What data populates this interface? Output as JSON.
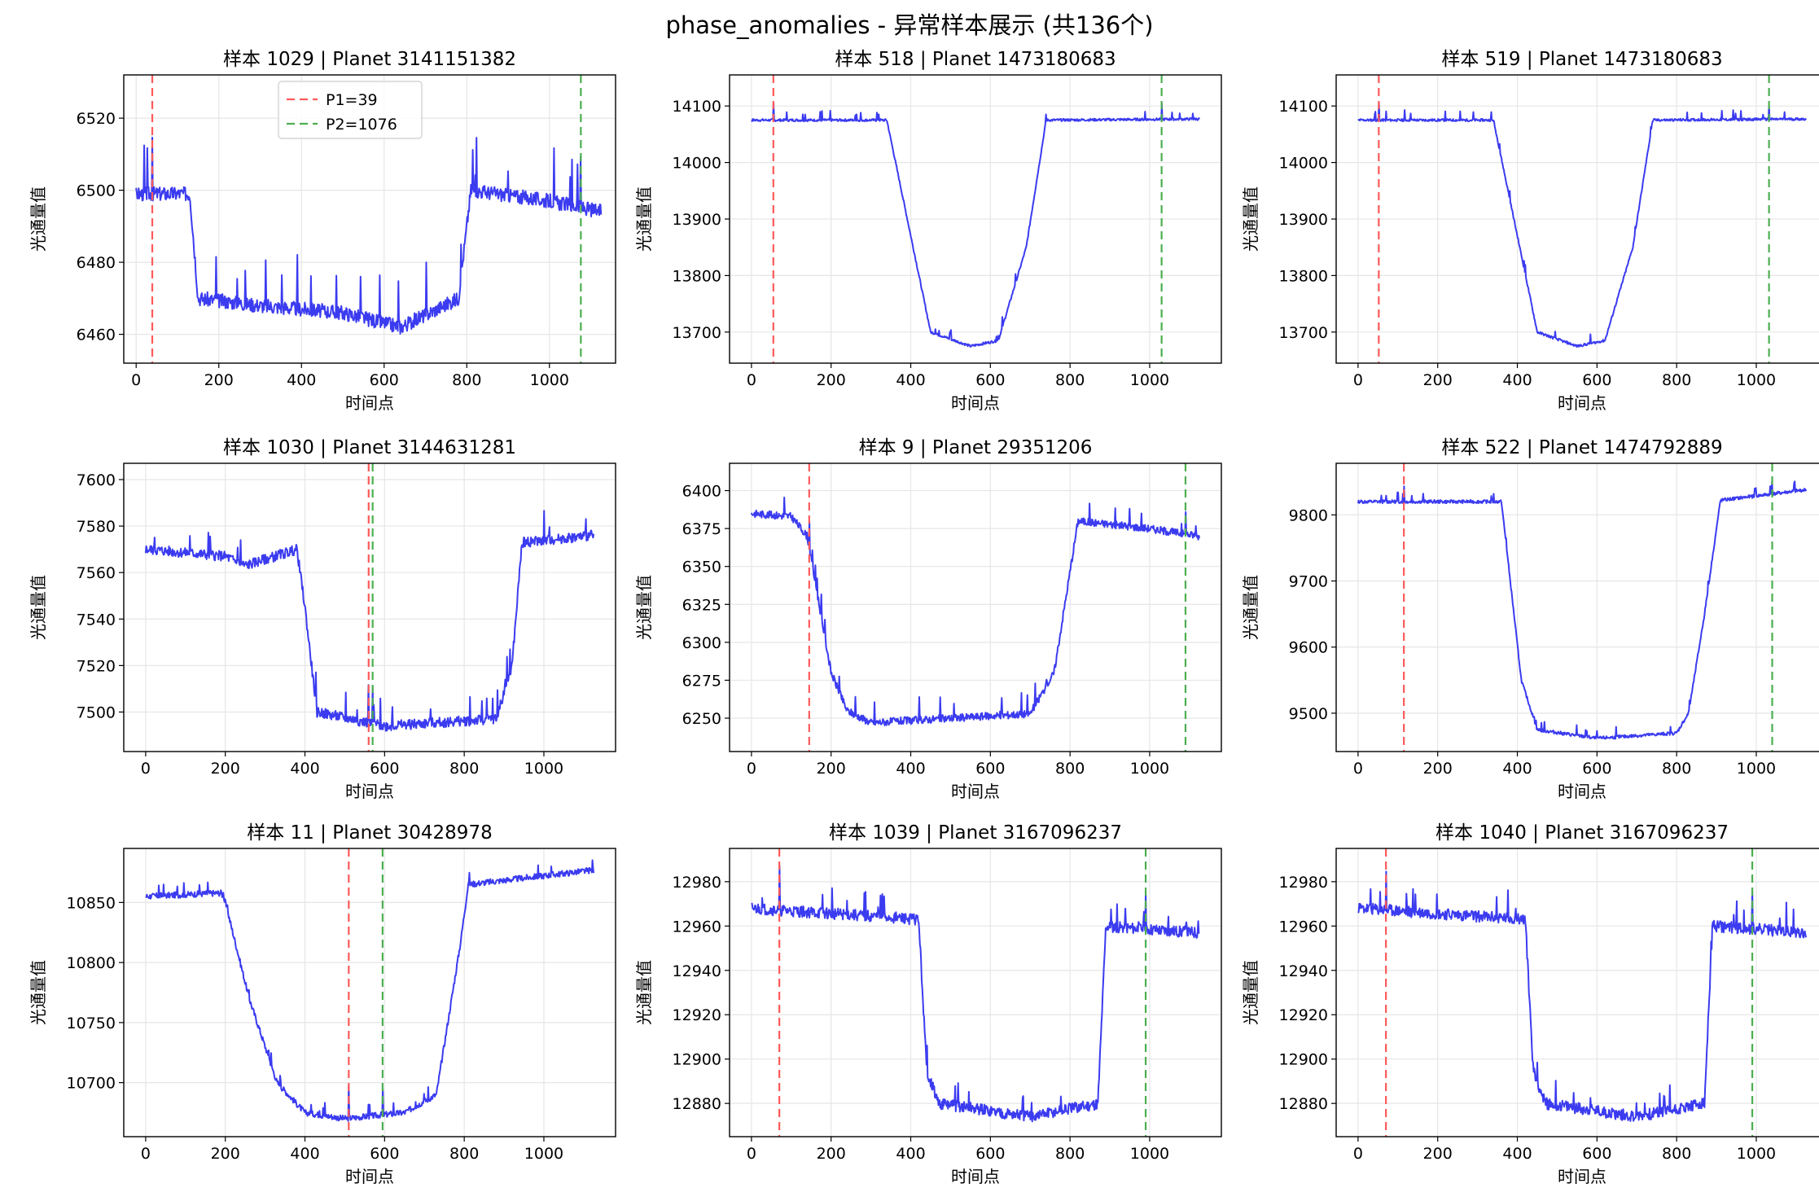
{
  "figure": {
    "title": "phase_anomalies - 异常样本展示 (共136个)",
    "xlabel": "时间点",
    "ylabel": "光通量值"
  },
  "colors": {
    "signal": "#3b3bf0",
    "p1": "#ff5a5a",
    "p2": "#4caf50",
    "grid": "#e6e6e6"
  },
  "chart_data": [
    {
      "type": "line",
      "title": "样本 1029 | Planet 3141151382",
      "xlim": [
        -30,
        1160
      ],
      "ylim": [
        6452,
        6532
      ],
      "yticks": [
        6460,
        6480,
        6500,
        6520
      ],
      "p1": 39,
      "p2": 1076,
      "legend": [
        "P1=39",
        "P2=1076"
      ],
      "profile": [
        [
          0,
          6499
        ],
        [
          130,
          6499
        ],
        [
          150,
          6470
        ],
        [
          300,
          6468
        ],
        [
          500,
          6466
        ],
        [
          640,
          6462
        ],
        [
          780,
          6470
        ],
        [
          810,
          6500
        ],
        [
          1000,
          6497
        ],
        [
          1125,
          6494
        ]
      ],
      "noise": 2.0,
      "spike_heights": [
        12,
        16,
        8
      ],
      "seed": 3
    },
    {
      "type": "line",
      "title": "样本 518 | Planet 1473180683",
      "xlim": [
        -55,
        1180
      ],
      "ylim": [
        13645,
        14155
      ],
      "yticks": [
        13700,
        13800,
        13900,
        14000,
        14100
      ],
      "p1": 55,
      "p2": 1030,
      "profile": [
        [
          0,
          14075
        ],
        [
          340,
          14075
        ],
        [
          450,
          13700
        ],
        [
          550,
          13675
        ],
        [
          620,
          13685
        ],
        [
          690,
          13850
        ],
        [
          740,
          14075
        ],
        [
          1125,
          14077
        ]
      ],
      "noise": 2.2,
      "spike_heights": [
        15,
        30,
        10
      ],
      "seed": 7
    },
    {
      "type": "line",
      "title": "样本 519 | Planet 1473180683",
      "xlim": [
        -55,
        1180
      ],
      "ylim": [
        13645,
        14155
      ],
      "yticks": [
        13700,
        13800,
        13900,
        14000,
        14100
      ],
      "p1": 52,
      "p2": 1032,
      "profile": [
        [
          0,
          14075
        ],
        [
          340,
          14075
        ],
        [
          450,
          13700
        ],
        [
          550,
          13675
        ],
        [
          620,
          13685
        ],
        [
          690,
          13850
        ],
        [
          740,
          14075
        ],
        [
          1125,
          14077
        ]
      ],
      "noise": 2.2,
      "spike_heights": [
        15,
        30,
        10
      ],
      "seed": 11
    },
    {
      "type": "line",
      "title": "样本 1030 | Planet 3144631281",
      "xlim": [
        -55,
        1180
      ],
      "ylim": [
        7483,
        7607
      ],
      "yticks": [
        7500,
        7520,
        7540,
        7560,
        7580,
        7600
      ],
      "p1": 560,
      "p2": 570,
      "profile": [
        [
          0,
          7570
        ],
        [
          200,
          7567
        ],
        [
          250,
          7563
        ],
        [
          380,
          7570
        ],
        [
          400,
          7545
        ],
        [
          430,
          7500
        ],
        [
          600,
          7494
        ],
        [
          880,
          7497
        ],
        [
          920,
          7520
        ],
        [
          945,
          7573
        ],
        [
          1125,
          7576
        ]
      ],
      "noise": 2.2,
      "spike_heights": [
        10,
        18,
        8
      ],
      "seed": 5
    },
    {
      "type": "line",
      "title": "样本 9 | Planet 29351206",
      "xlim": [
        -55,
        1180
      ],
      "ylim": [
        6228,
        6418
      ],
      "yticks": [
        6250,
        6275,
        6300,
        6325,
        6350,
        6375,
        6400
      ],
      "p1": 145,
      "p2": 1090,
      "profile": [
        [
          0,
          6385
        ],
        [
          100,
          6383
        ],
        [
          140,
          6370
        ],
        [
          200,
          6280
        ],
        [
          240,
          6255
        ],
        [
          300,
          6247
        ],
        [
          700,
          6253
        ],
        [
          760,
          6280
        ],
        [
          820,
          6380
        ],
        [
          1000,
          6375
        ],
        [
          1125,
          6370
        ]
      ],
      "noise": 2.5,
      "spike_heights": [
        12,
        20,
        8
      ],
      "seed": 9
    },
    {
      "type": "line",
      "title": "样本 522 | Planet 1474792889",
      "xlim": [
        -55,
        1180
      ],
      "ylim": [
        9442,
        9878
      ],
      "yticks": [
        9500,
        9600,
        9700,
        9800
      ],
      "p1": 115,
      "p2": 1040,
      "profile": [
        [
          0,
          9820
        ],
        [
          360,
          9820
        ],
        [
          410,
          9550
        ],
        [
          450,
          9475
        ],
        [
          600,
          9462
        ],
        [
          800,
          9470
        ],
        [
          830,
          9500
        ],
        [
          870,
          9650
        ],
        [
          910,
          9822
        ],
        [
          1125,
          9838
        ]
      ],
      "noise": 2.5,
      "spike_heights": [
        12,
        25,
        8
      ],
      "seed": 13
    },
    {
      "type": "line",
      "title": "样本 11 | Planet 30428978",
      "xlim": [
        -55,
        1180
      ],
      "ylim": [
        10655,
        10895
      ],
      "yticks": [
        10700,
        10750,
        10800,
        10850
      ],
      "p1": 510,
      "p2": 595,
      "profile": [
        [
          0,
          10855
        ],
        [
          190,
          10858
        ],
        [
          200,
          10850
        ],
        [
          260,
          10770
        ],
        [
          330,
          10700
        ],
        [
          400,
          10675
        ],
        [
          500,
          10670
        ],
        [
          650,
          10675
        ],
        [
          730,
          10690
        ],
        [
          790,
          10815
        ],
        [
          810,
          10865
        ],
        [
          1125,
          10877
        ]
      ],
      "noise": 2.5,
      "spike_heights": [
        10,
        25,
        8
      ],
      "seed": 17
    },
    {
      "type": "line",
      "title": "样本 1039 | Planet 3167096237",
      "xlim": [
        -55,
        1180
      ],
      "ylim": [
        12865,
        12995
      ],
      "yticks": [
        12880,
        12900,
        12920,
        12940,
        12960,
        12980
      ],
      "p1": 70,
      "p2": 990,
      "profile": [
        [
          0,
          12968
        ],
        [
          420,
          12963
        ],
        [
          440,
          12895
        ],
        [
          470,
          12880
        ],
        [
          700,
          12874
        ],
        [
          870,
          12880
        ],
        [
          890,
          12960
        ],
        [
          1125,
          12957
        ]
      ],
      "noise": 2.6,
      "spike_heights": [
        10,
        18,
        8
      ],
      "seed": 21
    },
    {
      "type": "line",
      "title": "样本 1040 | Planet 3167096237",
      "xlim": [
        -55,
        1180
      ],
      "ylim": [
        12865,
        12995
      ],
      "yticks": [
        12880,
        12900,
        12920,
        12940,
        12960,
        12980
      ],
      "p1": 70,
      "p2": 990,
      "profile": [
        [
          0,
          12968
        ],
        [
          420,
          12963
        ],
        [
          440,
          12895
        ],
        [
          470,
          12880
        ],
        [
          700,
          12874
        ],
        [
          870,
          12880
        ],
        [
          890,
          12960
        ],
        [
          1125,
          12957
        ]
      ],
      "noise": 2.6,
      "spike_heights": [
        10,
        18,
        8
      ],
      "seed": 23
    }
  ]
}
